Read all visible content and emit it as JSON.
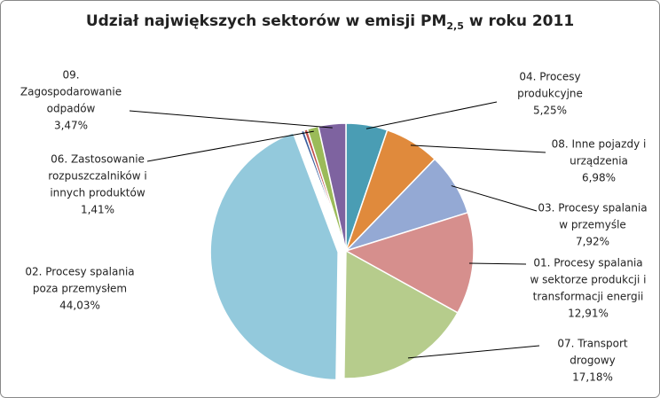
{
  "chart_data": {
    "type": "pie",
    "title": [
      "Udział największych sektorów w emisji PM",
      "2,5",
      " w roku 2011"
    ],
    "categories": [
      [
        "04. Procesy",
        "produkcyjne"
      ],
      [
        "08. Inne pojazdy i",
        "urządzenia"
      ],
      [
        "03. Procesy spalania",
        "w przemyśle"
      ],
      [
        "01. Procesy spalania",
        "w sektorze produkcji i",
        "transformacji energii"
      ],
      [
        "07. Transport",
        "drogowy"
      ],
      [
        "02. Procesy spalania",
        "poza przemysłem"
      ],
      null,
      null,
      [
        "06. Zastosowanie",
        "rozpuszczalników i",
        "innych produktów"
      ],
      [
        "09.",
        "Zagospodarowanie",
        "odpadów"
      ]
    ],
    "values": [
      5.25,
      6.98,
      7.92,
      12.91,
      17.18,
      44.03,
      0.4,
      0.45,
      1.41,
      3.47
    ],
    "value_labels": [
      "5,25%",
      "6,98%",
      "7,92%",
      "12,91%",
      "17,18%",
      "44,03%",
      null,
      null,
      "1,41%",
      "3,47%"
    ],
    "colors": [
      "#4a9db4",
      "#e08a3c",
      "#94a9d4",
      "#d68f8d",
      "#b6cc8c",
      "#93c9dc",
      "#3c5f9f",
      "#c0504d",
      "#9bbb59",
      "#7e63a0"
    ]
  }
}
